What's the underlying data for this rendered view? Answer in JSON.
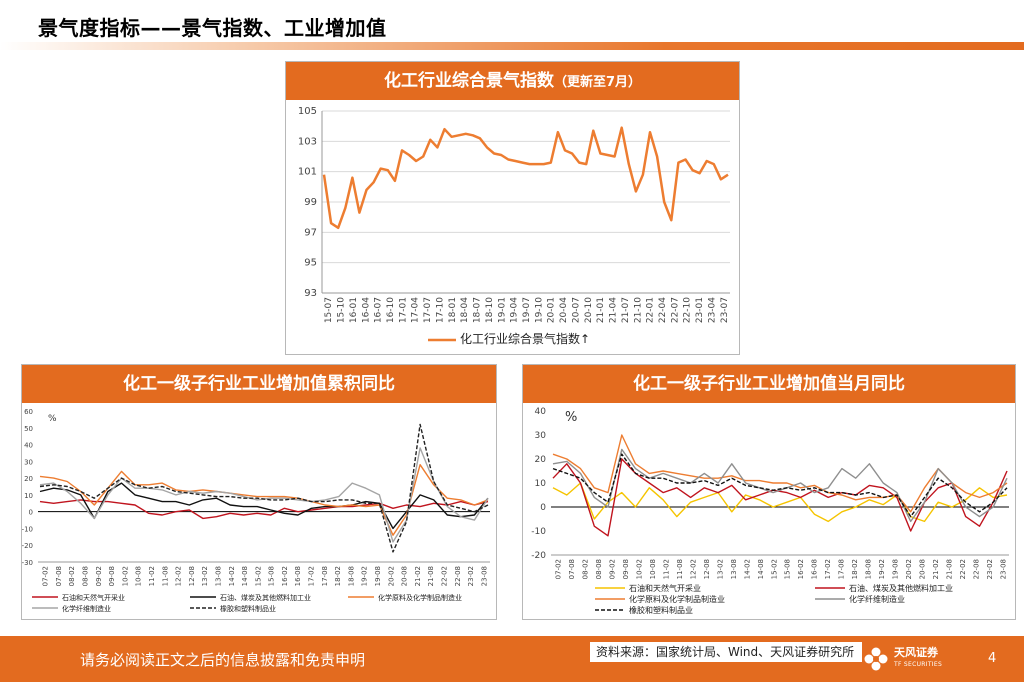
{
  "page": {
    "title": "景气度指标——景气指数、工业增加值",
    "disclaimer": "请务必阅读正文之后的信息披露和免责申明",
    "source": "资料来源：国家统计局、Wind、天风证券研究所",
    "logo_name": "天风证券",
    "logo_sub": "TF SECURITIES",
    "page_number": "4"
  },
  "colors": {
    "accent": "#e36b1f",
    "series_main": "#ed7d31"
  },
  "chart_data": [
    {
      "id": "sentiment_index",
      "type": "line",
      "title": "化工行业综合景气指数",
      "subtitle": "（更新至7月）",
      "ylim": [
        93,
        105
      ],
      "yticks": [
        93,
        95,
        97,
        99,
        101,
        103,
        105
      ],
      "tick_labels": [
        "15-07",
        "15-10",
        "16-01",
        "16-04",
        "16-07",
        "16-10",
        "17-01",
        "17-04",
        "17-07",
        "17-10",
        "18-01",
        "18-04",
        "18-07",
        "18-10",
        "19-01",
        "19-04",
        "19-07",
        "19-10",
        "20-01",
        "20-04",
        "20-07",
        "20-10",
        "21-01",
        "21-04",
        "21-07",
        "21-10",
        "22-01",
        "22-04",
        "22-07",
        "22-10",
        "23-01",
        "23-04",
        "23-07"
      ],
      "legend": [
        "化工行业综合景气指数"
      ],
      "legend_suffix": "↑",
      "series": [
        {
          "name": "化工行业综合景气指数",
          "color": "#ed7d31",
          "values": [
            100.8,
            97.6,
            97.3,
            98.6,
            100.6,
            98.3,
            99.8,
            100.3,
            101.2,
            101.1,
            100.4,
            102.4,
            102.1,
            101.7,
            102.0,
            103.1,
            102.6,
            103.8,
            103.3,
            103.4,
            103.5,
            103.4,
            103.2,
            102.6,
            102.2,
            102.1,
            101.8,
            101.7,
            101.6,
            101.5,
            101.5,
            101.5,
            101.6,
            103.6,
            102.4,
            102.2,
            101.6,
            101.5,
            103.7,
            102.2,
            102.1,
            102.0,
            103.9,
            101.5,
            99.7,
            100.8,
            103.6,
            102.0,
            99.0,
            97.8,
            101.6,
            101.8,
            101.1,
            100.9,
            101.7,
            101.5,
            100.5,
            100.8
          ]
        }
      ]
    },
    {
      "id": "ytd_growth",
      "type": "line",
      "title": "化工一级子行业工业增加值累积同比",
      "ylabel": "%",
      "ylim": [
        -30,
        60
      ],
      "yticks": [
        -30,
        -20,
        -10,
        0,
        10,
        20,
        30,
        40,
        50,
        60
      ],
      "tick_labels": [
        "07-02",
        "07-08",
        "08-02",
        "08-08",
        "09-02",
        "09-08",
        "10-02",
        "10-08",
        "11-02",
        "11-08",
        "12-02",
        "12-08",
        "13-02",
        "13-08",
        "14-02",
        "14-08",
        "15-02",
        "15-08",
        "16-02",
        "16-08",
        "17-02",
        "17-08",
        "18-02",
        "18-08",
        "19-02",
        "19-08",
        "20-02",
        "20-08",
        "21-02",
        "21-08",
        "22-02",
        "22-08",
        "23-02",
        "23-08"
      ],
      "series": [
        {
          "name": "石油和天然气开采业",
          "color": "#c0141e",
          "dash": "",
          "values": [
            6,
            5,
            6,
            7,
            6,
            6,
            5,
            4,
            -1,
            -2,
            0,
            1,
            -4,
            -3,
            -1,
            -2,
            -1,
            -2,
            2,
            0,
            1,
            2,
            3,
            3,
            4,
            5,
            2,
            4,
            3,
            5,
            4,
            6,
            4,
            6
          ]
        },
        {
          "name": "石油、煤炭及其他燃料加工业",
          "color": "#111111",
          "dash": "",
          "values": [
            12,
            14,
            13,
            10,
            -4,
            12,
            17,
            10,
            8,
            6,
            6,
            4,
            7,
            8,
            4,
            3,
            3,
            1,
            -1,
            -2,
            2,
            3,
            3,
            4,
            6,
            5,
            -10,
            0,
            10,
            7,
            -2,
            -3,
            -2,
            8
          ]
        },
        {
          "name": "化学原料及化学制品制造业",
          "color": "#ed7d31",
          "dash": "",
          "values": [
            21,
            20,
            18,
            12,
            4,
            14,
            24,
            16,
            16,
            17,
            13,
            12,
            13,
            12,
            11,
            10,
            9,
            9,
            9,
            8,
            6,
            4,
            3,
            4,
            3,
            4,
            -14,
            -2,
            28,
            16,
            8,
            7,
            4,
            7
          ]
        },
        {
          "name": "化学纤维制造业",
          "color": "#a5a5a5",
          "dash": "",
          "values": [
            16,
            17,
            12,
            5,
            -4,
            10,
            20,
            14,
            14,
            13,
            10,
            12,
            11,
            12,
            11,
            9,
            7,
            8,
            8,
            7,
            6,
            7,
            9,
            17,
            14,
            10,
            -18,
            -5,
            38,
            18,
            3,
            -3,
            -5,
            8
          ]
        },
        {
          "name": "橡胶和塑料制品业",
          "color": "#222222",
          "dash": "4,2",
          "values": [
            15,
            16,
            15,
            12,
            8,
            14,
            20,
            16,
            14,
            15,
            12,
            11,
            10,
            9,
            9,
            8,
            8,
            7,
            7,
            8,
            6,
            6,
            7,
            7,
            5,
            5,
            -24,
            -6,
            52,
            18,
            4,
            2,
            0,
            4
          ]
        }
      ]
    },
    {
      "id": "monthly_growth",
      "type": "line",
      "title": "化工一级子行业工业增加值当月同比",
      "ylabel": "%",
      "ylim": [
        -20,
        40
      ],
      "yticks": [
        -20,
        -10,
        0,
        10,
        20,
        30,
        40
      ],
      "tick_labels": [
        "07-02",
        "07-08",
        "08-02",
        "08-08",
        "09-02",
        "09-08",
        "10-02",
        "10-08",
        "11-02",
        "11-08",
        "12-02",
        "12-08",
        "13-02",
        "13-08",
        "14-02",
        "14-08",
        "15-02",
        "15-08",
        "16-02",
        "16-08",
        "17-02",
        "17-08",
        "18-02",
        "18-08",
        "19-02",
        "19-08",
        "20-02",
        "20-08",
        "21-02",
        "21-08",
        "22-02",
        "22-08",
        "23-02",
        "23-08"
      ],
      "series": [
        {
          "name": "石油和天然气开采业",
          "color": "#f5c400",
          "dash": "",
          "values": [
            8,
            5,
            10,
            -5,
            2,
            6,
            0,
            8,
            3,
            -4,
            2,
            4,
            6,
            -2,
            5,
            3,
            0,
            2,
            4,
            -3,
            -6,
            -2,
            0,
            3,
            1,
            5,
            -4,
            -6,
            2,
            0,
            3,
            8,
            4,
            5
          ]
        },
        {
          "name": "石油、煤炭及其他燃料加工业",
          "color": "#c0141e",
          "dash": "",
          "values": [
            12,
            18,
            10,
            -8,
            -12,
            20,
            14,
            10,
            6,
            8,
            4,
            8,
            6,
            9,
            3,
            5,
            7,
            6,
            4,
            7,
            4,
            6,
            5,
            9,
            8,
            4,
            -10,
            2,
            8,
            10,
            -4,
            -8,
            2,
            15
          ]
        },
        {
          "name": "化学原料及化学制品制造业",
          "color": "#ed7d31",
          "dash": "",
          "values": [
            22,
            20,
            16,
            8,
            6,
            30,
            18,
            14,
            15,
            14,
            13,
            12,
            12,
            13,
            11,
            11,
            10,
            10,
            8,
            9,
            6,
            5,
            3,
            4,
            4,
            5,
            -2,
            8,
            16,
            10,
            6,
            4,
            6,
            10
          ]
        },
        {
          "name": "化学纤维制造业",
          "color": "#8f8f8f",
          "dash": "",
          "values": [
            18,
            19,
            14,
            4,
            0,
            24,
            16,
            12,
            14,
            12,
            10,
            14,
            10,
            18,
            10,
            8,
            6,
            8,
            10,
            6,
            8,
            16,
            12,
            18,
            10,
            6,
            -6,
            2,
            16,
            10,
            0,
            -4,
            0,
            12
          ]
        },
        {
          "name": "橡胶和塑料制品业",
          "color": "#111111",
          "dash": "4,2",
          "values": [
            16,
            14,
            12,
            6,
            2,
            22,
            14,
            12,
            12,
            10,
            10,
            11,
            9,
            12,
            9,
            8,
            7,
            8,
            7,
            8,
            6,
            6,
            5,
            6,
            4,
            5,
            -4,
            4,
            12,
            8,
            2,
            -2,
            2,
            8
          ]
        }
      ]
    }
  ]
}
